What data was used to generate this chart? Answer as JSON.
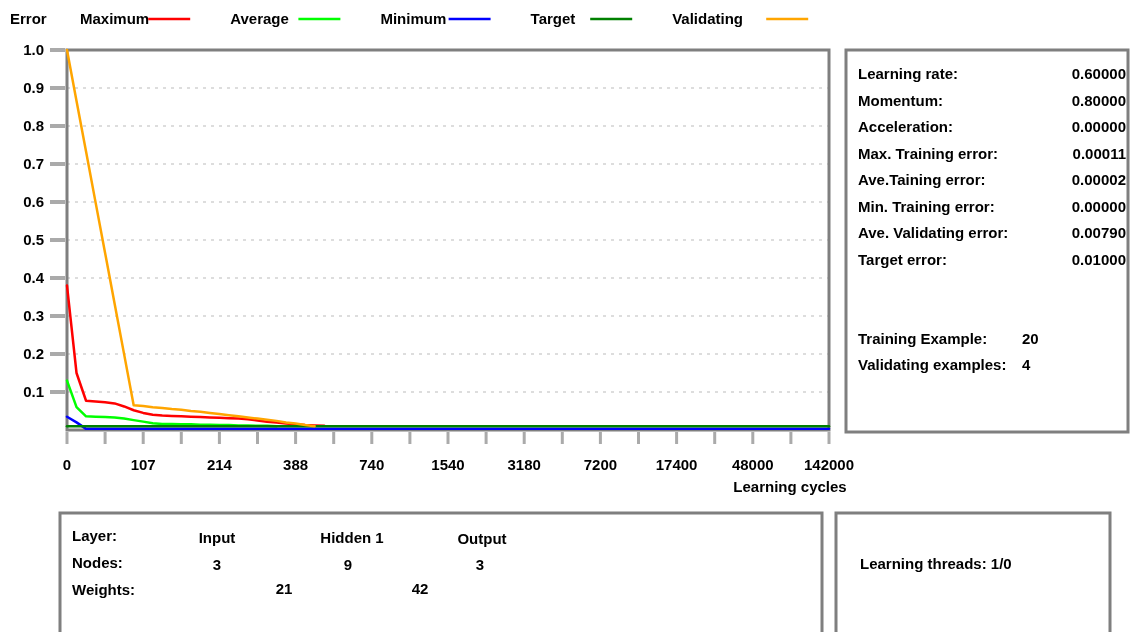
{
  "chart_data": [
    {
      "type": "line",
      "ylabel": "Error",
      "xlabel": "Learning cycles",
      "legend": "top",
      "grid": "y",
      "marker": "none",
      "line_style": "solid",
      "categories": [
        "0",
        null,
        null,
        null,
        null,
        null,
        null,
        null,
        "107",
        null,
        null,
        null,
        null,
        null,
        null,
        null,
        "214",
        null,
        null,
        null,
        null,
        null,
        null,
        null,
        "388",
        null,
        null,
        null,
        null,
        null,
        null,
        null,
        "740",
        null,
        null,
        null,
        null,
        null,
        null,
        null,
        "1540",
        null,
        null,
        null,
        null,
        null,
        null,
        null,
        "3180",
        null,
        null,
        null,
        null,
        null,
        null,
        null,
        "7200",
        null,
        null,
        null,
        null,
        null,
        null,
        null,
        "17400",
        null,
        null,
        null,
        null,
        null,
        null,
        null,
        "48000",
        null,
        null,
        null,
        null,
        null,
        null,
        null,
        "142000"
      ],
      "ylim": [
        0,
        1
      ],
      "yticks": [
        0.1,
        0.2,
        0.3,
        0.4,
        0.5,
        0.6,
        0.7,
        0.8,
        0.9,
        {
          "value": 1,
          "label": "1.0"
        }
      ],
      "series": [
        {
          "name": "Maximum",
          "color": "#ff0000",
          "values": [
            0.38,
            0.15,
            0.077,
            0.075,
            0.073,
            0.07,
            0.062,
            0.052,
            0.045,
            0.04,
            0.038,
            0.037,
            0.036,
            0.035,
            0.034,
            0.033,
            0.032,
            0.031,
            0.03,
            0.028,
            0.025,
            0.022,
            0.02,
            0.017,
            0.015,
            0.013,
            0.012,
            0.011,
            null,
            null,
            null,
            null,
            null,
            null,
            null,
            null,
            null,
            null,
            null,
            null,
            null,
            null,
            null,
            null,
            null,
            null,
            null,
            null,
            null,
            null,
            null,
            null,
            null,
            null,
            null,
            null,
            null,
            null,
            null,
            null,
            null,
            null,
            null,
            null,
            null,
            null,
            null,
            null,
            null,
            null,
            null,
            null,
            null,
            null,
            null,
            null,
            null,
            null,
            null,
            null,
            null
          ]
        },
        {
          "name": "Average",
          "color": "#00ff00",
          "values": [
            0.13,
            0.06,
            0.036,
            0.035,
            0.034,
            0.033,
            0.03,
            0.026,
            0.022,
            0.018,
            0.016,
            0.016,
            0.015,
            0.015,
            0.014,
            0.014,
            0.013,
            0.013,
            0.012,
            0.012,
            0.011,
            0.011,
            0.01,
            null,
            null,
            null,
            null,
            null,
            null,
            null,
            null,
            null,
            null,
            null,
            null,
            null,
            null,
            null,
            null,
            null,
            null,
            null,
            null,
            null,
            null,
            null,
            null,
            null,
            null,
            null,
            null,
            null,
            null,
            null,
            null,
            null,
            null,
            null,
            null,
            null,
            null,
            null,
            null,
            null,
            null,
            null,
            null,
            null,
            null,
            null,
            null,
            null,
            null,
            null,
            null,
            null,
            null,
            null,
            null,
            null,
            null
          ]
        },
        {
          "name": "Minimum",
          "color": "#0000ff",
          "values": [
            0.035,
            0.02,
            0.003,
            0.003,
            0.003,
            0.003,
            0.003,
            0.003,
            0.003,
            0.003,
            0.003,
            0.003,
            0.003,
            0.003,
            0.003,
            0.003,
            0.003,
            0.003,
            0.003,
            0.003,
            0.003,
            0.003,
            0.003,
            0.003,
            0.003,
            0.003,
            0.003,
            0.003,
            0.003,
            0.003,
            0.003,
            0.003,
            0.003,
            0.003,
            0.003,
            0.003,
            0.003,
            0.003,
            0.003,
            0.003,
            0.003,
            0.003,
            0.003,
            0.003,
            0.003,
            0.003,
            0.003,
            0.003,
            0.003,
            0.003,
            0.003,
            0.003,
            0.003,
            0.003,
            0.003,
            0.003,
            0.003,
            0.003,
            0.003,
            0.003,
            0.003,
            0.003,
            0.003,
            0.003,
            0.003,
            0.003,
            0.003,
            0.003,
            0.003,
            0.003,
            0.003,
            0.003,
            0.003,
            0.003,
            0.003,
            0.003,
            0.003,
            0.003,
            0.003,
            0.003,
            0.003
          ]
        },
        {
          "name": "Target",
          "color": "#008000",
          "values": [
            0.01,
            0.01,
            0.01,
            0.01,
            0.01,
            0.01,
            0.01,
            0.01,
            0.01,
            0.01,
            0.01,
            0.01,
            0.01,
            0.01,
            0.01,
            0.01,
            0.01,
            0.01,
            0.01,
            0.01,
            0.01,
            0.01,
            0.01,
            0.01,
            0.01,
            0.01,
            0.01,
            0.01,
            0.01,
            0.01,
            0.01,
            0.01,
            0.01,
            0.01,
            0.01,
            0.01,
            0.01,
            0.01,
            0.01,
            0.01,
            0.01,
            0.01,
            0.01,
            0.01,
            0.01,
            0.01,
            0.01,
            0.01,
            0.01,
            0.01,
            0.01,
            0.01,
            0.01,
            0.01,
            0.01,
            0.01,
            0.01,
            0.01,
            0.01,
            0.01,
            0.01,
            0.01,
            0.01,
            0.01,
            0.01,
            0.01,
            0.01,
            0.01,
            0.01,
            0.01,
            0.01,
            0.01,
            0.01,
            0.01,
            0.01,
            0.01,
            0.01,
            0.01,
            0.01,
            0.01,
            0.01
          ]
        },
        {
          "name": "Validating",
          "color": "#ffa500",
          "values": [
            1.0,
            0.866,
            0.733,
            0.599,
            0.466,
            0.332,
            0.199,
            0.065,
            0.063,
            0.06,
            0.058,
            0.055,
            0.053,
            0.05,
            0.048,
            0.045,
            0.042,
            0.039,
            0.036,
            0.033,
            0.03,
            0.027,
            0.024,
            0.02,
            0.017,
            0.013,
            0.01,
            null,
            null,
            null,
            null,
            null,
            null,
            null,
            null,
            null,
            null,
            null,
            null,
            null,
            null,
            null,
            null,
            null,
            null,
            null,
            null,
            null,
            null,
            null,
            null,
            null,
            null,
            null,
            null,
            null,
            null,
            null,
            null,
            null,
            null,
            null,
            null,
            null,
            null,
            null,
            null,
            null,
            null,
            null,
            null,
            null,
            null,
            null,
            null,
            null,
            null,
            null,
            null,
            null,
            null
          ]
        }
      ]
    },
    {
      "type": "other",
      "annotations": [
        "Learning rate:",
        "0.60000",
        "Momentum:",
        "0.80000",
        "Acceleration:",
        "0.00000",
        "Max. Training error:",
        "0.00011",
        "Ave.Taining error:",
        "0.00002",
        "Min. Training error:",
        "0.00000",
        "Ave. Validating error:",
        "0.00790",
        "Target error:",
        "0.01000",
        "Training Example:",
        "20",
        "Validating examples:",
        "4"
      ]
    },
    {
      "type": "other",
      "annotations": [
        "Layer:",
        "Input",
        "Hidden 1",
        "Output",
        "Nodes:",
        "3",
        "9",
        "3",
        "Weights:",
        "21",
        "42"
      ]
    },
    {
      "type": "other",
      "annotations": [
        "Learning threads: 1/0"
      ]
    }
  ]
}
